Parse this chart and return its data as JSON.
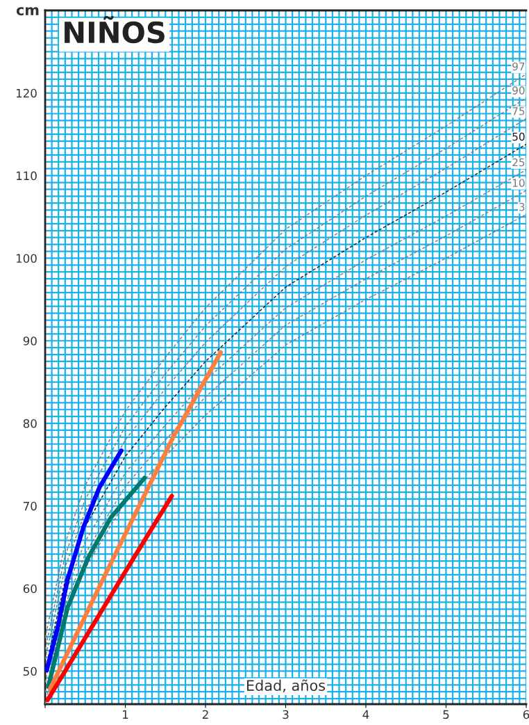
{
  "chart_data": {
    "type": "line",
    "title": "NIÑOS",
    "xlabel": "Edad, años",
    "ylabel": "cm",
    "xlim": [
      0,
      6
    ],
    "ylim": [
      46,
      130
    ],
    "xticks": [
      {
        "value": 0,
        "label": null
      },
      1,
      2,
      3,
      4,
      5,
      6
    ],
    "yticks": [
      50,
      60,
      70,
      80,
      90,
      100,
      110,
      120
    ],
    "grid": true,
    "legend": false,
    "series": [
      {
        "name": "97",
        "color": "#7a7a7a",
        "line_style": "dashed",
        "x": [
          0,
          0.25,
          0.5,
          1,
          1.5,
          2,
          3,
          4,
          5,
          6
        ],
        "values": [
          54,
          65.5,
          72.5,
          81.5,
          88,
          94,
          103.5,
          110,
          116,
          122.3
        ]
      },
      {
        "name": "90",
        "color": "#7a7a7a",
        "line_style": "dashed",
        "x": [
          0,
          0.25,
          0.5,
          1,
          1.5,
          2,
          3,
          4,
          5,
          6
        ],
        "values": [
          52.6,
          64,
          70.8,
          79.6,
          86,
          91.8,
          101.1,
          107.5,
          113.3,
          119.4
        ]
      },
      {
        "name": "75",
        "color": "#7a7a7a",
        "line_style": "dashed",
        "x": [
          0,
          0.25,
          0.5,
          1,
          1.5,
          2,
          3,
          4,
          5,
          6
        ],
        "values": [
          51.4,
          62.6,
          69.3,
          78,
          84.2,
          89.8,
          99,
          105.2,
          110.9,
          116.9
        ]
      },
      {
        "name": "50",
        "color": "#1a1a1a",
        "line_style": "dashed",
        "x": [
          0,
          0.25,
          0.5,
          1,
          1.5,
          2,
          3,
          4,
          5,
          6
        ],
        "values": [
          50,
          61,
          67.5,
          76,
          82,
          87.5,
          96.5,
          102.5,
          108,
          113.8
        ]
      },
      {
        "name": "25",
        "color": "#7a7a7a",
        "line_style": "dashed",
        "x": [
          0,
          0.25,
          0.5,
          1,
          1.5,
          2,
          3,
          4,
          5,
          6
        ],
        "values": [
          48.6,
          59.4,
          65.7,
          74,
          79.8,
          85.2,
          94,
          99.8,
          105.1,
          110.7
        ]
      },
      {
        "name": "10",
        "color": "#7a7a7a",
        "line_style": "dashed",
        "x": [
          0,
          0.25,
          0.5,
          1,
          1.5,
          2,
          3,
          4,
          5,
          6
        ],
        "values": [
          47.4,
          58,
          64.2,
          72.4,
          78,
          83.2,
          91.9,
          97.5,
          102.7,
          108.2
        ]
      },
      {
        "name": "3",
        "color": "#7a7a7a",
        "line_style": "dashed",
        "x": [
          0,
          0.25,
          0.5,
          1,
          1.5,
          2,
          3,
          4,
          5,
          6
        ],
        "values": [
          46,
          56.5,
          62.5,
          70.5,
          76,
          81,
          89.5,
          95,
          100,
          105.3
        ]
      },
      {
        "color": "#0000ff",
        "line_style": "solid",
        "x": [
          0.02,
          0.16,
          0.28,
          0.48,
          0.68,
          0.95
        ],
        "values": [
          50.1,
          55.4,
          61.1,
          67.5,
          72.3,
          76.7
        ]
      },
      {
        "color": "#007a6e",
        "line_style": "solid",
        "x": [
          0.04,
          0.28,
          0.54,
          0.82,
          1.24
        ],
        "values": [
          48.1,
          57.7,
          63.8,
          68.6,
          73.4
        ]
      },
      {
        "color": "#ff7f3f",
        "line_style": "solid",
        "x": [
          0.06,
          0.74,
          1.6,
          2.19
        ],
        "values": [
          47.8,
          61.5,
          78.4,
          88.6
        ]
      },
      {
        "color": "#ff0000",
        "line_style": "solid",
        "x": [
          0.03,
          1.06,
          1.58
        ],
        "values": [
          46.5,
          63.0,
          71.2
        ]
      }
    ]
  }
}
